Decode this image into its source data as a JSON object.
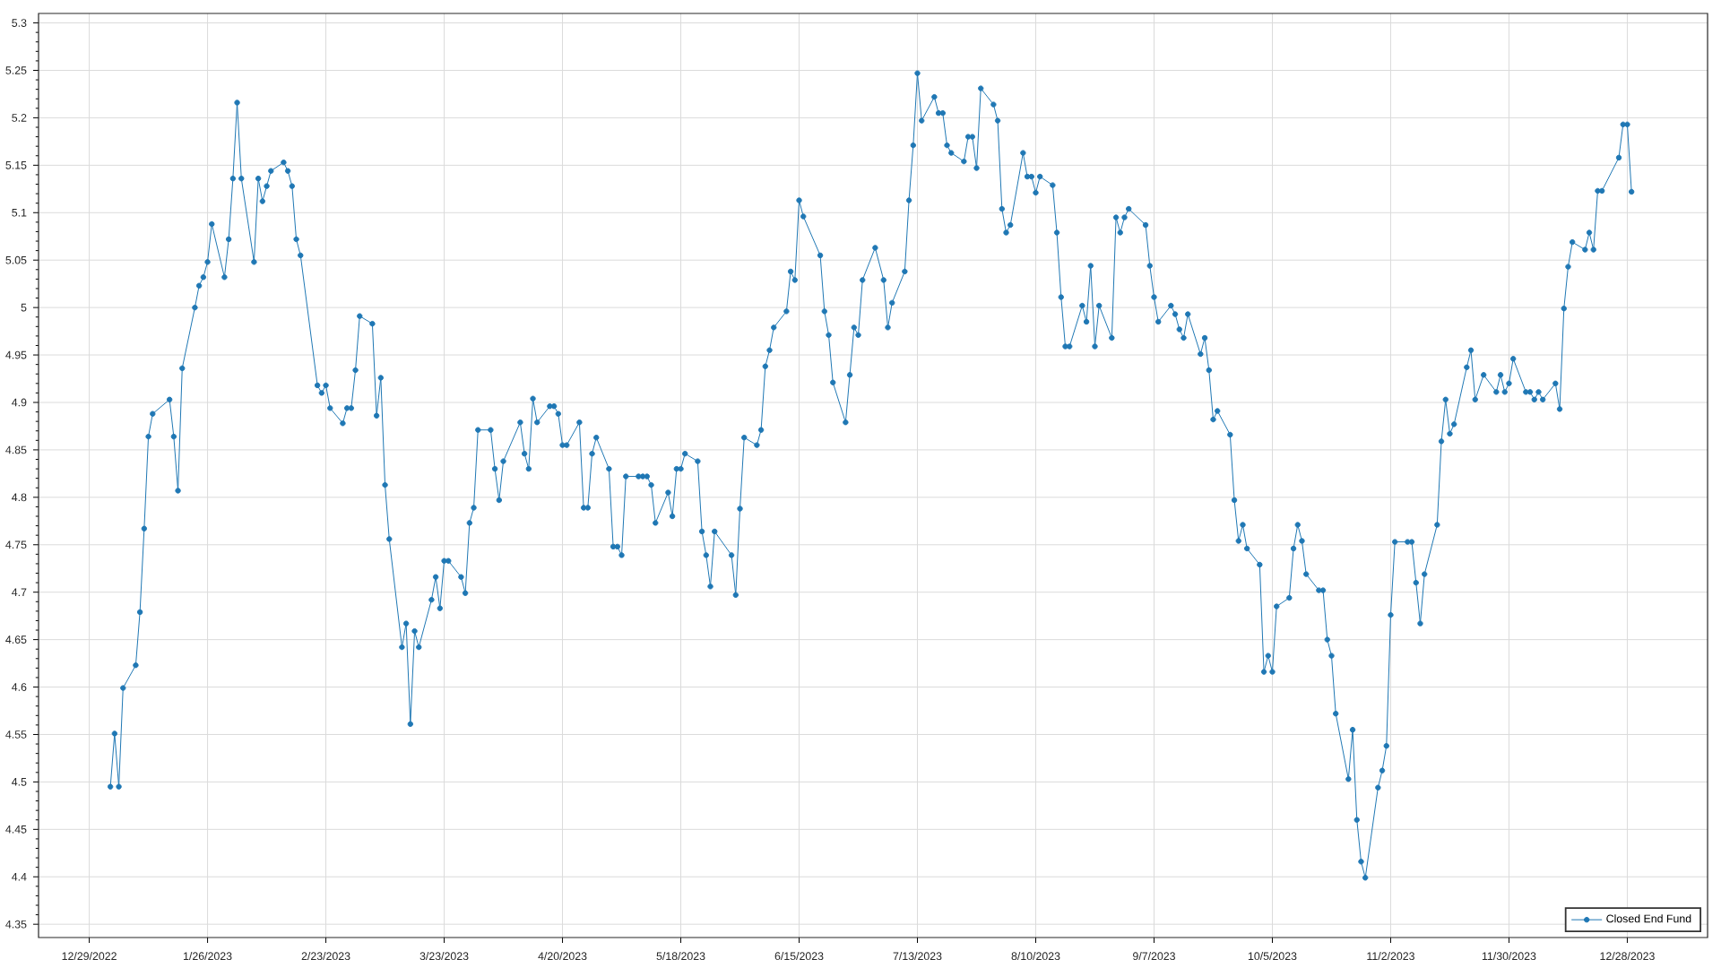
{
  "chart_data": {
    "type": "line",
    "x": [
      "2023-01-03",
      "2023-01-04",
      "2023-01-05",
      "2023-01-06",
      "2023-01-09",
      "2023-01-10",
      "2023-01-11",
      "2023-01-12",
      "2023-01-13",
      "2023-01-17",
      "2023-01-18",
      "2023-01-19",
      "2023-01-20",
      "2023-01-23",
      "2023-01-24",
      "2023-01-25",
      "2023-01-26",
      "2023-01-27",
      "2023-01-30",
      "2023-01-31",
      "2023-02-01",
      "2023-02-02",
      "2023-02-03",
      "2023-02-06",
      "2023-02-07",
      "2023-02-08",
      "2023-02-09",
      "2023-02-10",
      "2023-02-13",
      "2023-02-14",
      "2023-02-15",
      "2023-02-16",
      "2023-02-17",
      "2023-02-21",
      "2023-02-22",
      "2023-02-23",
      "2023-02-24",
      "2023-02-27",
      "2023-02-28",
      "2023-03-01",
      "2023-03-02",
      "2023-03-03",
      "2023-03-06",
      "2023-03-07",
      "2023-03-08",
      "2023-03-09",
      "2023-03-10",
      "2023-03-13",
      "2023-03-14",
      "2023-03-15",
      "2023-03-16",
      "2023-03-17",
      "2023-03-20",
      "2023-03-21",
      "2023-03-22",
      "2023-03-23",
      "2023-03-24",
      "2023-03-27",
      "2023-03-28",
      "2023-03-29",
      "2023-03-30",
      "2023-03-31",
      "2023-04-03",
      "2023-04-04",
      "2023-04-05",
      "2023-04-06",
      "2023-04-10",
      "2023-04-11",
      "2023-04-12",
      "2023-04-13",
      "2023-04-14",
      "2023-04-17",
      "2023-04-18",
      "2023-04-19",
      "2023-04-20",
      "2023-04-21",
      "2023-04-24",
      "2023-04-25",
      "2023-04-26",
      "2023-04-27",
      "2023-04-28",
      "2023-05-01",
      "2023-05-02",
      "2023-05-03",
      "2023-05-04",
      "2023-05-05",
      "2023-05-08",
      "2023-05-09",
      "2023-05-10",
      "2023-05-11",
      "2023-05-12",
      "2023-05-15",
      "2023-05-16",
      "2023-05-17",
      "2023-05-18",
      "2023-05-19",
      "2023-05-22",
      "2023-05-23",
      "2023-05-24",
      "2023-05-25",
      "2023-05-26",
      "2023-05-30",
      "2023-05-31",
      "2023-06-01",
      "2023-06-02",
      "2023-06-05",
      "2023-06-06",
      "2023-06-07",
      "2023-06-08",
      "2023-06-09",
      "2023-06-12",
      "2023-06-13",
      "2023-06-14",
      "2023-06-15",
      "2023-06-16",
      "2023-06-20",
      "2023-06-21",
      "2023-06-22",
      "2023-06-23",
      "2023-06-26",
      "2023-06-27",
      "2023-06-28",
      "2023-06-29",
      "2023-06-30",
      "2023-07-03",
      "2023-07-05",
      "2023-07-06",
      "2023-07-07",
      "2023-07-10",
      "2023-07-11",
      "2023-07-12",
      "2023-07-13",
      "2023-07-14",
      "2023-07-17",
      "2023-07-18",
      "2023-07-19",
      "2023-07-20",
      "2023-07-21",
      "2023-07-24",
      "2023-07-25",
      "2023-07-26",
      "2023-07-27",
      "2023-07-28",
      "2023-07-31",
      "2023-08-01",
      "2023-08-02",
      "2023-08-03",
      "2023-08-04",
      "2023-08-07",
      "2023-08-08",
      "2023-08-09",
      "2023-08-10",
      "2023-08-11",
      "2023-08-14",
      "2023-08-15",
      "2023-08-16",
      "2023-08-17",
      "2023-08-18",
      "2023-08-21",
      "2023-08-22",
      "2023-08-23",
      "2023-08-24",
      "2023-08-25",
      "2023-08-28",
      "2023-08-29",
      "2023-08-30",
      "2023-08-31",
      "2023-09-01",
      "2023-09-05",
      "2023-09-06",
      "2023-09-07",
      "2023-09-08",
      "2023-09-11",
      "2023-09-12",
      "2023-09-13",
      "2023-09-14",
      "2023-09-15",
      "2023-09-18",
      "2023-09-19",
      "2023-09-20",
      "2023-09-21",
      "2023-09-22",
      "2023-09-25",
      "2023-09-26",
      "2023-09-27",
      "2023-09-28",
      "2023-09-29",
      "2023-10-02",
      "2023-10-03",
      "2023-10-04",
      "2023-10-05",
      "2023-10-06",
      "2023-10-09",
      "2023-10-10",
      "2023-10-11",
      "2023-10-12",
      "2023-10-13",
      "2023-10-16",
      "2023-10-17",
      "2023-10-18",
      "2023-10-19",
      "2023-10-20",
      "2023-10-23",
      "2023-10-24",
      "2023-10-25",
      "2023-10-26",
      "2023-10-27",
      "2023-10-30",
      "2023-10-31",
      "2023-11-01",
      "2023-11-02",
      "2023-11-03",
      "2023-11-06",
      "2023-11-07",
      "2023-11-08",
      "2023-11-09",
      "2023-11-10",
      "2023-11-13",
      "2023-11-14",
      "2023-11-15",
      "2023-11-16",
      "2023-11-17",
      "2023-11-20",
      "2023-11-21",
      "2023-11-22",
      "2023-11-24",
      "2023-11-27",
      "2023-11-28",
      "2023-11-29",
      "2023-11-30",
      "2023-12-01",
      "2023-12-04",
      "2023-12-05",
      "2023-12-06",
      "2023-12-07",
      "2023-12-08",
      "2023-12-11",
      "2023-12-12",
      "2023-12-13",
      "2023-12-14",
      "2023-12-15",
      "2023-12-18",
      "2023-12-19",
      "2023-12-20",
      "2023-12-21",
      "2023-12-22",
      "2023-12-26",
      "2023-12-27",
      "2023-12-28",
      "2023-12-29"
    ],
    "series": [
      {
        "name": "Closed End Fund",
        "color": "#1f77b4",
        "values": [
          4.495,
          4.551,
          4.495,
          4.599,
          4.623,
          4.679,
          4.767,
          4.864,
          4.888,
          4.903,
          4.864,
          4.807,
          4.936,
          5.0,
          5.023,
          5.032,
          5.048,
          5.088,
          5.032,
          5.072,
          5.136,
          5.216,
          5.136,
          5.048,
          5.136,
          5.112,
          5.128,
          5.144,
          5.153,
          5.144,
          5.128,
          5.072,
          5.055,
          4.918,
          4.91,
          4.918,
          4.894,
          4.878,
          4.894,
          4.894,
          4.934,
          4.991,
          4.983,
          4.886,
          4.926,
          4.813,
          4.756,
          4.642,
          4.667,
          4.561,
          4.659,
          4.642,
          4.692,
          4.716,
          4.683,
          4.733,
          4.733,
          4.716,
          4.699,
          4.773,
          4.789,
          4.871,
          4.871,
          4.83,
          4.797,
          4.838,
          4.879,
          4.846,
          4.83,
          4.904,
          4.879,
          4.896,
          4.896,
          4.888,
          4.855,
          4.855,
          4.879,
          4.789,
          4.789,
          4.846,
          4.863,
          4.83,
          4.748,
          4.748,
          4.739,
          4.822,
          4.822,
          4.822,
          4.822,
          4.813,
          4.773,
          4.805,
          4.78,
          4.83,
          4.83,
          4.846,
          4.838,
          4.764,
          4.739,
          4.706,
          4.764,
          4.739,
          4.697,
          4.788,
          4.863,
          4.855,
          4.871,
          4.938,
          4.955,
          4.979,
          4.996,
          5.038,
          5.029,
          5.113,
          5.096,
          5.055,
          4.996,
          4.971,
          4.921,
          4.879,
          4.929,
          4.979,
          4.971,
          5.029,
          5.063,
          5.029,
          4.979,
          5.005,
          5.038,
          5.113,
          5.171,
          5.247,
          5.197,
          5.222,
          5.205,
          5.205,
          5.171,
          5.163,
          5.154,
          5.18,
          5.18,
          5.147,
          5.231,
          5.214,
          5.197,
          5.104,
          5.079,
          5.087,
          5.163,
          5.138,
          5.138,
          5.121,
          5.138,
          5.129,
          5.079,
          5.011,
          4.959,
          4.959,
          5.002,
          4.985,
          5.044,
          4.959,
          5.002,
          4.968,
          5.095,
          5.079,
          5.095,
          5.104,
          5.087,
          5.044,
          5.011,
          4.985,
          5.002,
          4.993,
          4.977,
          4.968,
          4.993,
          4.951,
          4.968,
          4.934,
          4.882,
          4.891,
          4.866,
          4.797,
          4.754,
          4.771,
          4.746,
          4.729,
          4.616,
          4.633,
          4.616,
          4.685,
          4.694,
          4.746,
          4.771,
          4.754,
          4.719,
          4.702,
          4.702,
          4.65,
          4.633,
          4.572,
          4.503,
          4.555,
          4.46,
          4.416,
          4.399,
          4.494,
          4.512,
          4.538,
          4.676,
          4.753,
          4.753,
          4.753,
          4.71,
          4.667,
          4.719,
          4.771,
          4.859,
          4.903,
          4.867,
          4.877,
          4.937,
          4.955,
          4.903,
          4.929,
          4.911,
          4.929,
          4.911,
          4.92,
          4.946,
          4.911,
          4.911,
          4.903,
          4.911,
          4.903,
          4.92,
          4.893,
          4.999,
          5.043,
          5.069,
          5.061,
          5.079,
          5.061,
          5.123,
          5.123,
          5.158,
          5.193,
          5.193,
          5.122
        ]
      }
    ],
    "xlim": [
      "2022-12-17",
      "2024-01-16"
    ],
    "xticks": [
      {
        "value": "2022-12-29",
        "label": "12/29/2022"
      },
      {
        "value": "2023-01-26",
        "label": "1/26/2023"
      },
      {
        "value": "2023-02-23",
        "label": "2/23/2023"
      },
      {
        "value": "2023-03-23",
        "label": "3/23/2023"
      },
      {
        "value": "2023-04-20",
        "label": "4/20/2023"
      },
      {
        "value": "2023-05-18",
        "label": "5/18/2023"
      },
      {
        "value": "2023-06-15",
        "label": "6/15/2023"
      },
      {
        "value": "2023-07-13",
        "label": "7/13/2023"
      },
      {
        "value": "2023-08-10",
        "label": "8/10/2023"
      },
      {
        "value": "2023-09-07",
        "label": "9/7/2023"
      },
      {
        "value": "2023-10-05",
        "label": "10/5/2023"
      },
      {
        "value": "2023-11-02",
        "label": "11/2/2023"
      },
      {
        "value": "2023-11-30",
        "label": "11/30/2023"
      },
      {
        "value": "2023-12-28",
        "label": "12/28/2023"
      }
    ],
    "ylim": [
      4.336,
      5.31
    ],
    "yticks": [
      4.35,
      4.4,
      4.45,
      4.5,
      4.55,
      4.6,
      4.65,
      4.7,
      4.75,
      4.8,
      4.85,
      4.9,
      4.95,
      5,
      5.05,
      5.1,
      5.15,
      5.2,
      5.25,
      5.3
    ],
    "grid": true,
    "legend": "bottom right",
    "marker": "circle",
    "line_style": "solid"
  }
}
